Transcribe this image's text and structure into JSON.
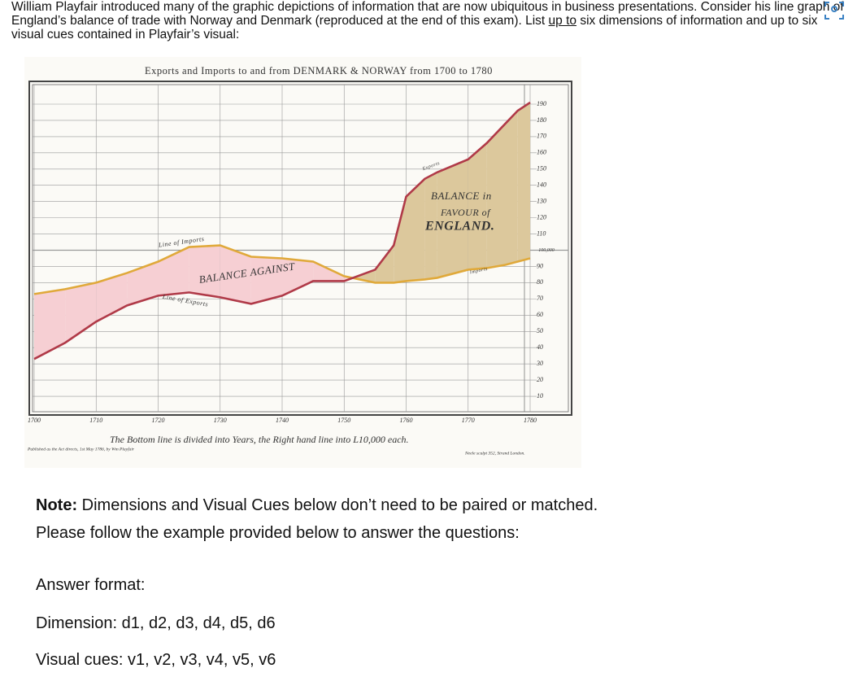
{
  "question": {
    "before": "William Playfair introduced many of the graphic depictions of information that are now ubiquitous in business presentations. Consider his line graph of England’s balance of trade with Norway and Denmark (reproduced at the end of this exam). List ",
    "underlined": "up to",
    "after": " six dimensions of information and up to six visual cues contained in Playfair’s visual:"
  },
  "figure": {
    "type": "line",
    "title": "Exports and Imports to and from DENMARK & NORWAY from 1700 to 1780",
    "x": [
      1700,
      1705,
      1710,
      1715,
      1720,
      1725,
      1730,
      1735,
      1740,
      1745,
      1750,
      1755,
      1758,
      1760,
      1763,
      1765,
      1770,
      1773,
      1776,
      1778,
      1780
    ],
    "series": [
      {
        "name": "Imports",
        "color": "#e0a93a",
        "values": [
          73,
          76,
          80,
          86,
          93,
          102,
          103,
          96,
          95,
          93,
          84,
          80,
          80,
          81,
          82,
          83,
          88,
          89,
          91,
          93,
          95
        ]
      },
      {
        "name": "Exports",
        "color": "#b03a48",
        "values": [
          33,
          43,
          56,
          66,
          72,
          74,
          71,
          67,
          72,
          81,
          81,
          88,
          103,
          133,
          144,
          148,
          156,
          166,
          178,
          186,
          191
        ]
      }
    ],
    "xlim": [
      1700,
      1780
    ],
    "ylim": [
      0,
      190
    ],
    "xticks": [
      1700,
      1710,
      1720,
      1730,
      1740,
      1750,
      1760,
      1770,
      1780
    ],
    "yticks": [
      10,
      20,
      30,
      40,
      50,
      60,
      70,
      80,
      90,
      {
        "value": 100,
        "label": "100,000"
      },
      110,
      120,
      130,
      140,
      150,
      160,
      170,
      180,
      190
    ],
    "grid": true,
    "annotations": [
      "Line of Imports",
      "Line of Exports",
      "BALANCE AGAINST",
      "BALANCE in",
      "FAVOUR of",
      "ENGLAND.",
      "Exports",
      "Imports"
    ],
    "caption": "The Bottom line is divided into Years, the Right hand line into L10,000 each.",
    "publisher": "Published as the Act directs, 1st May 1786, by Wm Playfair",
    "engraver": "Neele sculpt 352, Strand London."
  },
  "note": {
    "label": "Note:",
    "text": " Dimensions and Visual Cues below don’t need to be paired or matched."
  },
  "instruction": "Please follow the example provided below to answer the questions:",
  "answer_format": {
    "heading": "Answer format:",
    "dimension": "Dimension: d1, d2, d3, d4, d5, d6",
    "visual_cues": "Visual cues: v1, v2, v3, v4, v5, v6"
  }
}
